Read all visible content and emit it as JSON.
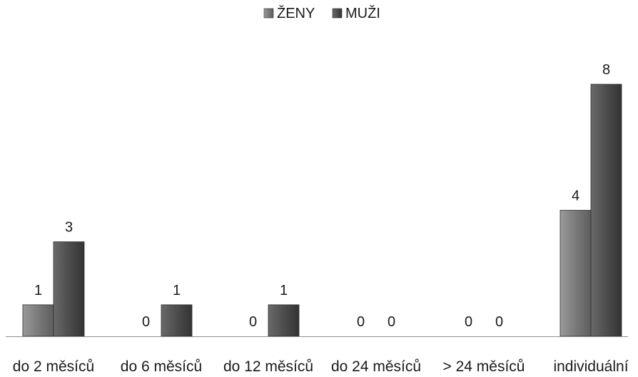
{
  "chart_data": {
    "type": "bar",
    "title": "",
    "xlabel": "",
    "ylabel": "",
    "categories": [
      "do 2 měsíců",
      "do 6 měsíců",
      "do 12 měsíců",
      "do 24 měsíců",
      "> 24 měsíců",
      "individuální"
    ],
    "series": [
      {
        "name": "ŽENY",
        "values": [
          1,
          0,
          0,
          0,
          0,
          4
        ],
        "color": "#7a7a7a"
      },
      {
        "name": "MUŽI",
        "values": [
          3,
          1,
          1,
          0,
          0,
          8
        ],
        "color": "#4d4d4d"
      }
    ],
    "ylim": [
      0,
      8
    ],
    "legend_position": "top",
    "grid": false,
    "data_labels": true
  }
}
